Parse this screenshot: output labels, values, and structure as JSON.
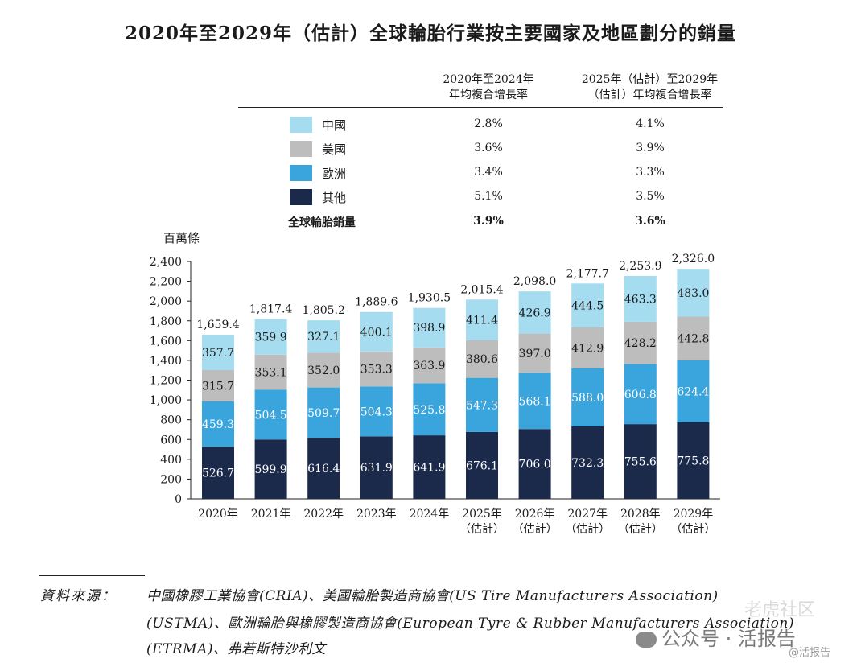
{
  "title": "2020年至2029年（估計）全球輪胎行業按主要國家及地區劃分的銷量",
  "cagr_table": {
    "col1_header": [
      "2020年至2024年",
      "年均複合增長率"
    ],
    "col2_header": [
      "2025年（估計）至2029年",
      "（估計）年均複合增長率"
    ],
    "rows": [
      {
        "label": "中國",
        "color": "#a6dcf0",
        "cagr_2020_2024": "2.8%",
        "cagr_2025_2029": "4.1%"
      },
      {
        "label": "美國",
        "color": "#bdbdbd",
        "cagr_2020_2024": "3.6%",
        "cagr_2025_2029": "3.9%"
      },
      {
        "label": "歐洲",
        "color": "#3aa4dc",
        "cagr_2020_2024": "3.4%",
        "cagr_2025_2029": "3.3%"
      },
      {
        "label": "其他",
        "color": "#1b2a4a",
        "cagr_2020_2024": "5.1%",
        "cagr_2025_2029": "3.5%"
      }
    ],
    "total": {
      "label": "全球輪胎銷量",
      "cagr_2020_2024": "3.9%",
      "cagr_2025_2029": "3.6%"
    }
  },
  "chart_data": {
    "type": "bar",
    "stacked": true,
    "unit_label": "百萬條",
    "categories": [
      [
        "2020年"
      ],
      [
        "2021年"
      ],
      [
        "2022年"
      ],
      [
        "2023年"
      ],
      [
        "2024年"
      ],
      [
        "2025年",
        "（估計）"
      ],
      [
        "2026年",
        "（估計）"
      ],
      [
        "2027年",
        "（估計）"
      ],
      [
        "2028年",
        "（估計）"
      ],
      [
        "2029年",
        "（估計）"
      ]
    ],
    "series": [
      {
        "name": "其他",
        "color": "#1b2a4a",
        "label_color": "#ffffff",
        "values": [
          526.7,
          599.9,
          616.4,
          631.9,
          641.9,
          676.1,
          706.0,
          732.3,
          755.6,
          775.8
        ],
        "labels": [
          "526.7",
          "599.9",
          "616.4",
          "631.9",
          "641.9",
          "676.1",
          "706.0",
          "732.3",
          "755.6",
          "775.8"
        ]
      },
      {
        "name": "歐洲",
        "color": "#3aa4dc",
        "label_color": "#ffffff",
        "values": [
          459.3,
          504.5,
          509.7,
          504.3,
          525.8,
          547.3,
          568.1,
          588.0,
          606.8,
          624.4
        ],
        "labels": [
          "459.3",
          "504.5",
          "509.7",
          "504.3",
          "525.8",
          "547.3",
          "568.1",
          "588.0",
          "606.8",
          "624.4"
        ]
      },
      {
        "name": "美國",
        "color": "#bdbdbd",
        "label_color": "#1a1a1a",
        "values": [
          315.7,
          353.1,
          352.0,
          353.3,
          363.9,
          380.6,
          397.0,
          412.9,
          428.2,
          442.8
        ],
        "labels": [
          "315.7",
          "353.1",
          "352.0",
          "353.3",
          "363.9",
          "380.6",
          "397.0",
          "412.9",
          "428.2",
          "442.8"
        ]
      },
      {
        "name": "中國",
        "color": "#a6dcf0",
        "label_color": "#1a1a1a",
        "values": [
          357.7,
          359.9,
          327.1,
          400.1,
          398.9,
          411.4,
          426.9,
          444.5,
          463.3,
          483.0
        ],
        "labels": [
          "357.7",
          "359.9",
          "327.1",
          "400.1",
          "398.9",
          "411.4",
          "426.9",
          "444.5",
          "463.3",
          "483.0"
        ]
      }
    ],
    "totals": [
      1659.4,
      1817.4,
      1805.2,
      1889.6,
      1930.5,
      2015.4,
      2098.0,
      2177.7,
      2253.9,
      2326.0
    ],
    "total_labels": [
      "1,659.4",
      "1,817.4",
      "1,805.2",
      "1,889.6",
      "1,930.5",
      "2,015.4",
      "2,098.0",
      "2,177.7",
      "2,253.9",
      "2,326.0"
    ],
    "ylim": [
      0,
      2400
    ],
    "yticks": [
      0,
      200,
      400,
      600,
      800,
      1000,
      1200,
      1400,
      1600,
      1800,
      2000,
      2200,
      2400
    ],
    "ytick_labels": [
      "0",
      "200",
      "400",
      "600",
      "800",
      "1,000",
      "1,200",
      "1,400",
      "1,600",
      "1,800",
      "2,000",
      "2,200",
      "2,400"
    ],
    "grid": false
  },
  "source": {
    "label": "資料來源：",
    "lines": [
      "中國橡膠工業協會(CRIA)、美國輪胎製造商協會(US Tire Manufacturers Association)",
      "(USTMA)、歐洲輪胎與橡膠製造商協會(European Tyre & Rubber Manufacturers Association)",
      "(ETRMA)、弗若斯特沙利文"
    ]
  },
  "watermarks": {
    "wechat": "公众号 · 活报告",
    "handle": "@活报告",
    "community": "老虎社区"
  }
}
